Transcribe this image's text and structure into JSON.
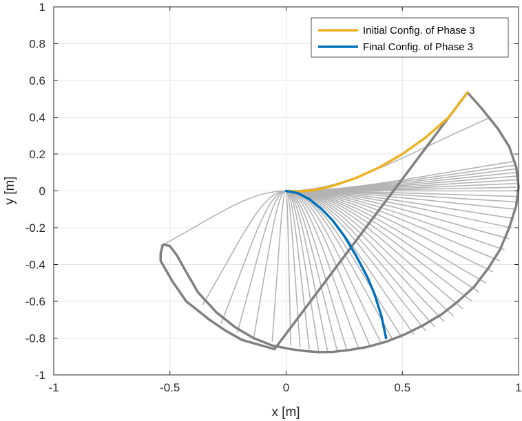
{
  "chart_data": {
    "type": "line",
    "title": "",
    "xlabel": "x [m]",
    "ylabel": "y [m]",
    "xlim": [
      -1,
      1
    ],
    "ylim": [
      -1,
      1
    ],
    "xticks": [
      -1,
      -0.5,
      0,
      0.5,
      1
    ],
    "xtick_labels": [
      "-1",
      "-0.5",
      "0",
      "0.5",
      "1"
    ],
    "yticks": [
      1,
      0.8,
      0.6,
      0.4,
      0.2,
      0,
      -0.2,
      -0.4,
      -0.6,
      -0.8,
      -1
    ],
    "ytick_labels": [
      "1",
      "0.8",
      "0.6",
      "0.4",
      "0.2",
      "0",
      "-0.2",
      "-0.4",
      "-0.6",
      "-0.8",
      "-1"
    ],
    "grid": true,
    "legend_position": "top-right",
    "colors": {
      "initial": "#EDB120",
      "final": "#0072BD",
      "intermediate": "#B3B3B3",
      "tip_path": "#808080",
      "grid": "#E6E6E6",
      "axis": "#262626"
    },
    "series": [
      {
        "name": "Initial Config. of Phase 3",
        "role": "initial",
        "x": [
          0,
          0.05,
          0.1,
          0.15,
          0.2,
          0.3,
          0.4,
          0.5,
          0.6,
          0.7,
          0.78
        ],
        "y": [
          0,
          -0.003,
          0.001,
          0.012,
          0.027,
          0.07,
          0.127,
          0.2,
          0.29,
          0.4,
          0.535
        ]
      },
      {
        "name": "Final Config. of Phase 3",
        "role": "final",
        "x": [
          0,
          0.05,
          0.1,
          0.15,
          0.2,
          0.25,
          0.3,
          0.35,
          0.38,
          0.41,
          0.43
        ],
        "y": [
          0,
          -0.012,
          -0.045,
          -0.095,
          -0.16,
          -0.245,
          -0.35,
          -0.47,
          -0.56,
          -0.68,
          -0.8
        ]
      }
    ],
    "intermediate_tips": [
      [
        0.88,
        0.4
      ],
      [
        0.98,
        0.16
      ],
      [
        0.99,
        0.14
      ],
      [
        0.99,
        0.12
      ],
      [
        0.99,
        0.1
      ],
      [
        0.99,
        0.08
      ],
      [
        0.99,
        0.06
      ],
      [
        0.99,
        0.04
      ],
      [
        0.99,
        0.02
      ],
      [
        0.99,
        0.0
      ],
      [
        0.99,
        -0.03
      ],
      [
        0.99,
        -0.06
      ],
      [
        0.99,
        -0.1
      ],
      [
        0.98,
        -0.15
      ],
      [
        0.97,
        -0.2
      ],
      [
        0.96,
        -0.26
      ],
      [
        0.94,
        -0.32
      ],
      [
        0.92,
        -0.38
      ],
      [
        0.89,
        -0.44
      ],
      [
        0.86,
        -0.5
      ],
      [
        0.83,
        -0.55
      ],
      [
        0.8,
        -0.6
      ],
      [
        0.76,
        -0.64
      ],
      [
        0.72,
        -0.68
      ],
      [
        0.68,
        -0.71
      ],
      [
        0.64,
        -0.74
      ],
      [
        0.6,
        -0.76
      ],
      [
        0.55,
        -0.78
      ],
      [
        0.5,
        -0.8
      ],
      [
        0.46,
        -0.81
      ],
      [
        0.41,
        -0.83
      ],
      [
        0.36,
        -0.84
      ],
      [
        0.31,
        -0.85
      ],
      [
        0.26,
        -0.86
      ],
      [
        0.22,
        -0.87
      ],
      [
        0.18,
        -0.88
      ],
      [
        0.14,
        -0.87
      ],
      [
        0.1,
        -0.86
      ],
      [
        0.06,
        -0.85
      ],
      [
        0.02,
        -0.84
      ],
      [
        -0.06,
        -0.82
      ],
      [
        -0.14,
        -0.8
      ],
      [
        -0.21,
        -0.77
      ],
      [
        -0.28,
        -0.72
      ],
      [
        -0.36,
        -0.62
      ],
      [
        -0.54,
        -0.3
      ]
    ],
    "tip_path": {
      "x": [
        -0.53,
        -0.5,
        -0.47,
        -0.43,
        -0.38,
        -0.3,
        -0.22,
        -0.14,
        -0.06,
        0.02,
        0.08,
        0.14,
        0.2,
        0.2,
        0.27,
        0.35,
        0.43,
        0.51,
        0.59,
        0.67,
        0.74,
        0.81,
        0.87,
        0.92,
        0.96,
        0.99,
        1.0,
        0.99,
        0.96,
        0.91,
        0.84,
        0.78,
        -0.05,
        -0.19,
        -0.26,
        -0.33,
        -0.37,
        -0.43,
        -0.49,
        -0.54,
        -0.54,
        -0.53
      ],
      "y": [
        -0.29,
        -0.3,
        -0.35,
        -0.44,
        -0.55,
        -0.66,
        -0.74,
        -0.8,
        -0.84,
        -0.86,
        -0.87,
        -0.876,
        -0.875,
        -0.875,
        -0.865,
        -0.848,
        -0.82,
        -0.78,
        -0.73,
        -0.67,
        -0.6,
        -0.52,
        -0.42,
        -0.32,
        -0.2,
        -0.08,
        0.02,
        0.13,
        0.24,
        0.34,
        0.45,
        0.535,
        -0.86,
        -0.81,
        -0.76,
        -0.7,
        -0.66,
        -0.6,
        -0.49,
        -0.38,
        -0.34,
        -0.29
      ]
    }
  }
}
